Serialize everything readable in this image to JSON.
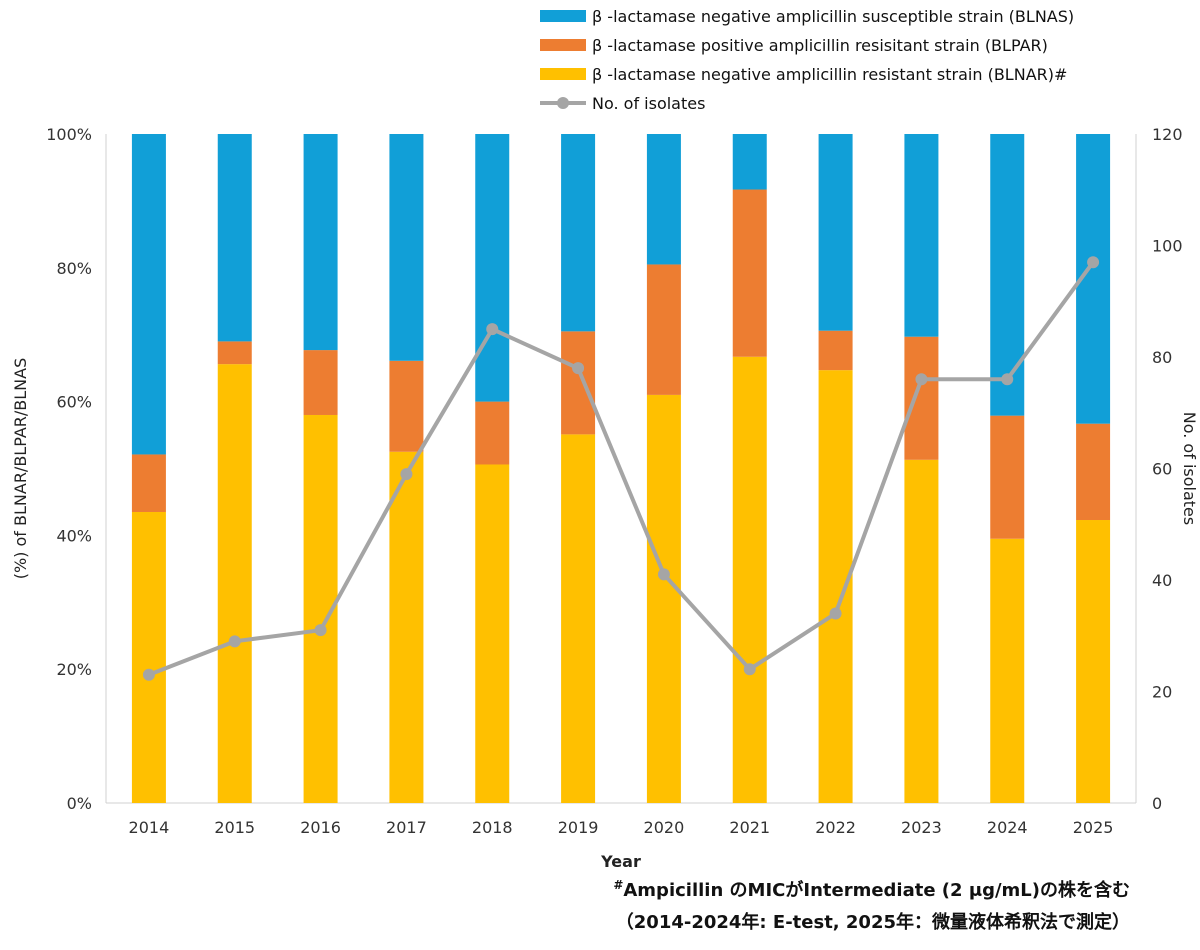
{
  "chart_data": {
    "type": "bar",
    "stacked": true,
    "categories": [
      "2014",
      "2015",
      "2016",
      "2017",
      "2018",
      "2019",
      "2020",
      "2021",
      "2022",
      "2023",
      "2024",
      "2025"
    ],
    "series": [
      {
        "name": "β -lactamase negative amplicillin resistant strain (BLNAR)#",
        "color": "#FFC000",
        "values": [
          43.5,
          65.6,
          58.0,
          52.5,
          50.6,
          55.1,
          61.0,
          66.7,
          64.7,
          51.3,
          39.5,
          42.3
        ]
      },
      {
        "name": "β -lactamase positive amplicillin resisitant strain (BLPAR)",
        "color": "#ED7D31",
        "values": [
          8.6,
          3.4,
          9.7,
          13.6,
          9.4,
          15.4,
          19.5,
          25.0,
          5.9,
          18.4,
          18.4,
          14.4
        ]
      },
      {
        "name": "β -lactamase negative amplicillin susceptible strain (BLNAS)",
        "color": "#119FD7",
        "values": [
          47.9,
          31.0,
          32.3,
          33.9,
          40.0,
          29.5,
          19.5,
          8.3,
          29.4,
          30.3,
          42.1,
          43.3
        ]
      }
    ],
    "line_series": {
      "name": "No. of isolates",
      "color": "#A5A5A5",
      "axis": "right",
      "values": [
        23,
        29,
        31,
        59,
        85,
        78,
        41,
        24,
        34,
        76,
        76,
        97
      ]
    },
    "legend_order": [
      "β -lactamase negative amplicillin susceptible strain (BLNAS)",
      "β -lactamase positive amplicillin resisitant strain (BLPAR)",
      "β -lactamase negative amplicillin resistant strain (BLNAR)#",
      "No. of isolates"
    ],
    "ylabel": "(%)  of BLNAR/BLPAR/BLNAS",
    "y2label": "No. of isolates",
    "xlabel": "Year",
    "ylim": [
      0,
      100
    ],
    "y2lim": [
      0,
      120
    ],
    "yticks": [
      "0%",
      "20%",
      "40%",
      "60%",
      "80%",
      "100%"
    ],
    "y2ticks": [
      "0",
      "20",
      "40",
      "60",
      "80",
      "100",
      "120"
    ],
    "legend_position": "top"
  },
  "footnote": {
    "line1_mark": "#",
    "line1": "Ampicillin のMICがIntermediate (2 μg/mL)の株を含む",
    "line2": "（2014-2024年: E-test, 2025年：微量液体希釈法で測定）"
  }
}
